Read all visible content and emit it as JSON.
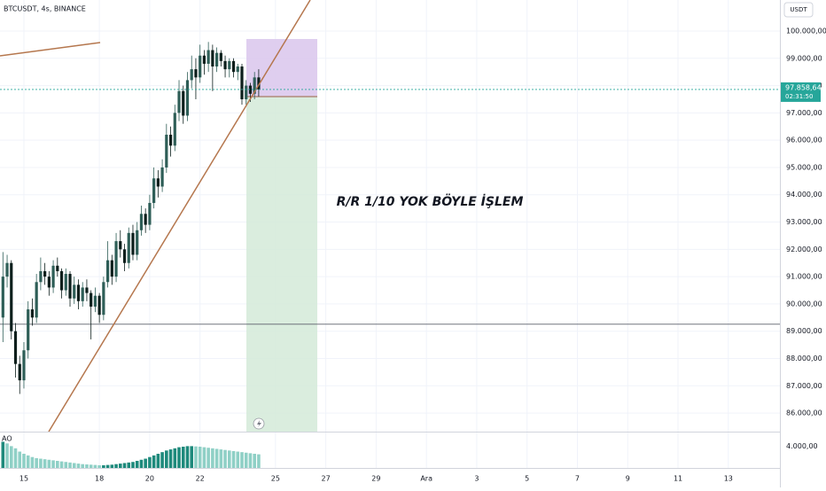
{
  "header": {
    "symbol": "BTCUSDT, 4s, BINANCE",
    "currency": "USDT"
  },
  "annotation": "R/R 1/10 YOK BÖYLE İŞLEM",
  "countdown": "02:31:50",
  "chart_data": {
    "type": "candlestick",
    "up_color": "#2e5e57",
    "down_color": "#0d1f1c",
    "x": [
      -5,
      -4,
      -3,
      -2,
      -1,
      0,
      1,
      2,
      3,
      4,
      5,
      6,
      7,
      8,
      9,
      10,
      11,
      12,
      13,
      14,
      15,
      16,
      17,
      18,
      19,
      20,
      21,
      22,
      23,
      24,
      25,
      26,
      27,
      28,
      29,
      30,
      31,
      32,
      33,
      34,
      35,
      36,
      37,
      38,
      39,
      40,
      41,
      42,
      43,
      44,
      45,
      46,
      47,
      48,
      49,
      50,
      51,
      52,
      53,
      54,
      55,
      56
    ],
    "ohlc": [
      [
        89500,
        91900,
        88600,
        91000
      ],
      [
        91000,
        91800,
        90600,
        91500
      ],
      [
        91500,
        91600,
        88700,
        89000
      ],
      [
        89000,
        89300,
        87300,
        87800
      ],
      [
        87800,
        88100,
        86700,
        87200
      ],
      [
        87200,
        88600,
        86900,
        88300
      ],
      [
        88300,
        90100,
        88000,
        89800
      ],
      [
        89800,
        90200,
        89200,
        89500
      ],
      [
        89500,
        91100,
        89300,
        90800
      ],
      [
        90800,
        91700,
        90500,
        91200
      ],
      [
        91200,
        91500,
        90700,
        91000
      ],
      [
        91000,
        91200,
        90300,
        90600
      ],
      [
        90600,
        91600,
        90400,
        91400
      ],
      [
        91400,
        91700,
        91000,
        91200
      ],
      [
        91200,
        91300,
        90200,
        90500
      ],
      [
        90500,
        91300,
        90300,
        91100
      ],
      [
        91100,
        91200,
        89900,
        90200
      ],
      [
        90200,
        91000,
        90000,
        90700
      ],
      [
        90700,
        90900,
        89800,
        90100
      ],
      [
        90100,
        90800,
        89900,
        90600
      ],
      [
        90600,
        90900,
        90100,
        90400
      ],
      [
        90400,
        90500,
        88700,
        89900
      ],
      [
        89900,
        90600,
        89700,
        90300
      ],
      [
        90300,
        90400,
        89300,
        89600
      ],
      [
        89600,
        91000,
        89400,
        90800
      ],
      [
        90800,
        92300,
        90600,
        91600
      ],
      [
        91600,
        91800,
        90700,
        91000
      ],
      [
        91000,
        92600,
        90800,
        92300
      ],
      [
        92300,
        92700,
        91700,
        92000
      ],
      [
        92000,
        92200,
        91200,
        91500
      ],
      [
        91500,
        92800,
        91300,
        92600
      ],
      [
        92600,
        92900,
        91600,
        91800
      ],
      [
        91800,
        93000,
        91600,
        92700
      ],
      [
        92700,
        93600,
        92500,
        93300
      ],
      [
        93300,
        93500,
        92600,
        92900
      ],
      [
        92900,
        94000,
        92700,
        93700
      ],
      [
        93700,
        95000,
        93500,
        94600
      ],
      [
        94600,
        94900,
        93900,
        94300
      ],
      [
        94300,
        95300,
        94100,
        95000
      ],
      [
        95000,
        96600,
        94800,
        96200
      ],
      [
        96200,
        96500,
        95400,
        95800
      ],
      [
        95800,
        97300,
        95600,
        97000
      ],
      [
        97000,
        98200,
        96700,
        97800
      ],
      [
        97800,
        98000,
        96600,
        96900
      ],
      [
        96900,
        98500,
        96700,
        98200
      ],
      [
        98200,
        99100,
        97900,
        98600
      ],
      [
        98600,
        99000,
        97500,
        98300
      ],
      [
        98300,
        99500,
        98100,
        99100
      ],
      [
        99100,
        99300,
        98400,
        98800
      ],
      [
        98800,
        99600,
        98500,
        99300
      ],
      [
        99300,
        99500,
        97800,
        98700
      ],
      [
        98700,
        99400,
        98500,
        99200
      ],
      [
        99200,
        99300,
        98700,
        98900
      ],
      [
        98900,
        99100,
        98300,
        98600
      ],
      [
        98600,
        99000,
        98300,
        98900
      ],
      [
        98900,
        99000,
        98300,
        98500
      ],
      [
        98500,
        98800,
        98200,
        98700
      ],
      [
        98700,
        98800,
        97300,
        97500
      ],
      [
        97500,
        98200,
        97300,
        98000
      ],
      [
        98000,
        98100,
        97400,
        97700
      ],
      [
        97700,
        98500,
        97500,
        98300
      ],
      [
        98300,
        98600,
        97600,
        97858.64
      ]
    ],
    "last_price_label": "97.858,64",
    "xlim": [
      -5.7,
      180.3
    ],
    "xticks": [
      {
        "value": 0,
        "label": "15"
      },
      {
        "value": 18,
        "label": "18"
      },
      {
        "value": 30,
        "label": "20"
      },
      {
        "value": 42,
        "label": "22"
      },
      {
        "value": 60,
        "label": "25"
      },
      {
        "value": 72,
        "label": "27"
      },
      {
        "value": 84,
        "label": "29"
      },
      {
        "value": 96,
        "label": "Ara"
      },
      {
        "value": 108,
        "label": "3"
      },
      {
        "value": 120,
        "label": "5"
      },
      {
        "value": 132,
        "label": "7"
      },
      {
        "value": 144,
        "label": "9"
      },
      {
        "value": 156,
        "label": "11"
      },
      {
        "value": 168,
        "label": "13"
      }
    ],
    "ylim": [
      85320,
      101137
    ],
    "yticks": [
      {
        "value": 86000,
        "label": "86.000,00"
      },
      {
        "value": 87000,
        "label": "87.000,00"
      },
      {
        "value": 88000,
        "label": "88.000,00"
      },
      {
        "value": 89000,
        "label": "89.000,00"
      },
      {
        "value": 90000,
        "label": "90.000,00"
      },
      {
        "value": 91000,
        "label": "91.000,00"
      },
      {
        "value": 92000,
        "label": "92.000,00"
      },
      {
        "value": 93000,
        "label": "93.000,00"
      },
      {
        "value": 94000,
        "label": "94.000,00"
      },
      {
        "value": 95000,
        "label": "95.000,00"
      },
      {
        "value": 96000,
        "label": "96.000,00"
      },
      {
        "value": 97000,
        "label": "97.000,00"
      },
      {
        "value": 98000,
        "label": "98.000,00"
      },
      {
        "value": 99000,
        "label": "99.000,00"
      },
      {
        "value": 100000,
        "label": "100.000,00"
      }
    ],
    "indicator": {
      "type": "bar",
      "name": "AO",
      "rising_color": "#1e8a7c",
      "falling_color": "#8fd0c6",
      "values": [
        4800,
        4500,
        4000,
        3600,
        3000,
        2600,
        2300,
        2000,
        1800,
        1700,
        1600,
        1500,
        1400,
        1300,
        1200,
        1100,
        1000,
        900,
        800,
        700,
        650,
        600,
        550,
        500,
        500,
        550,
        600,
        700,
        800,
        900,
        1000,
        1100,
        1300,
        1500,
        1700,
        2000,
        2300,
        2600,
        2900,
        3200,
        3400,
        3600,
        3800,
        3900,
        4000,
        4000,
        3950,
        3900,
        3800,
        3700,
        3600,
        3500,
        3400,
        3300,
        3200,
        3100,
        3000,
        2900,
        2800,
        2700,
        2600,
        2500
      ],
      "ylim": [
        0,
        6500
      ],
      "yticks": [
        {
          "value": 4000,
          "label": "4.000,00"
        }
      ]
    }
  }
}
